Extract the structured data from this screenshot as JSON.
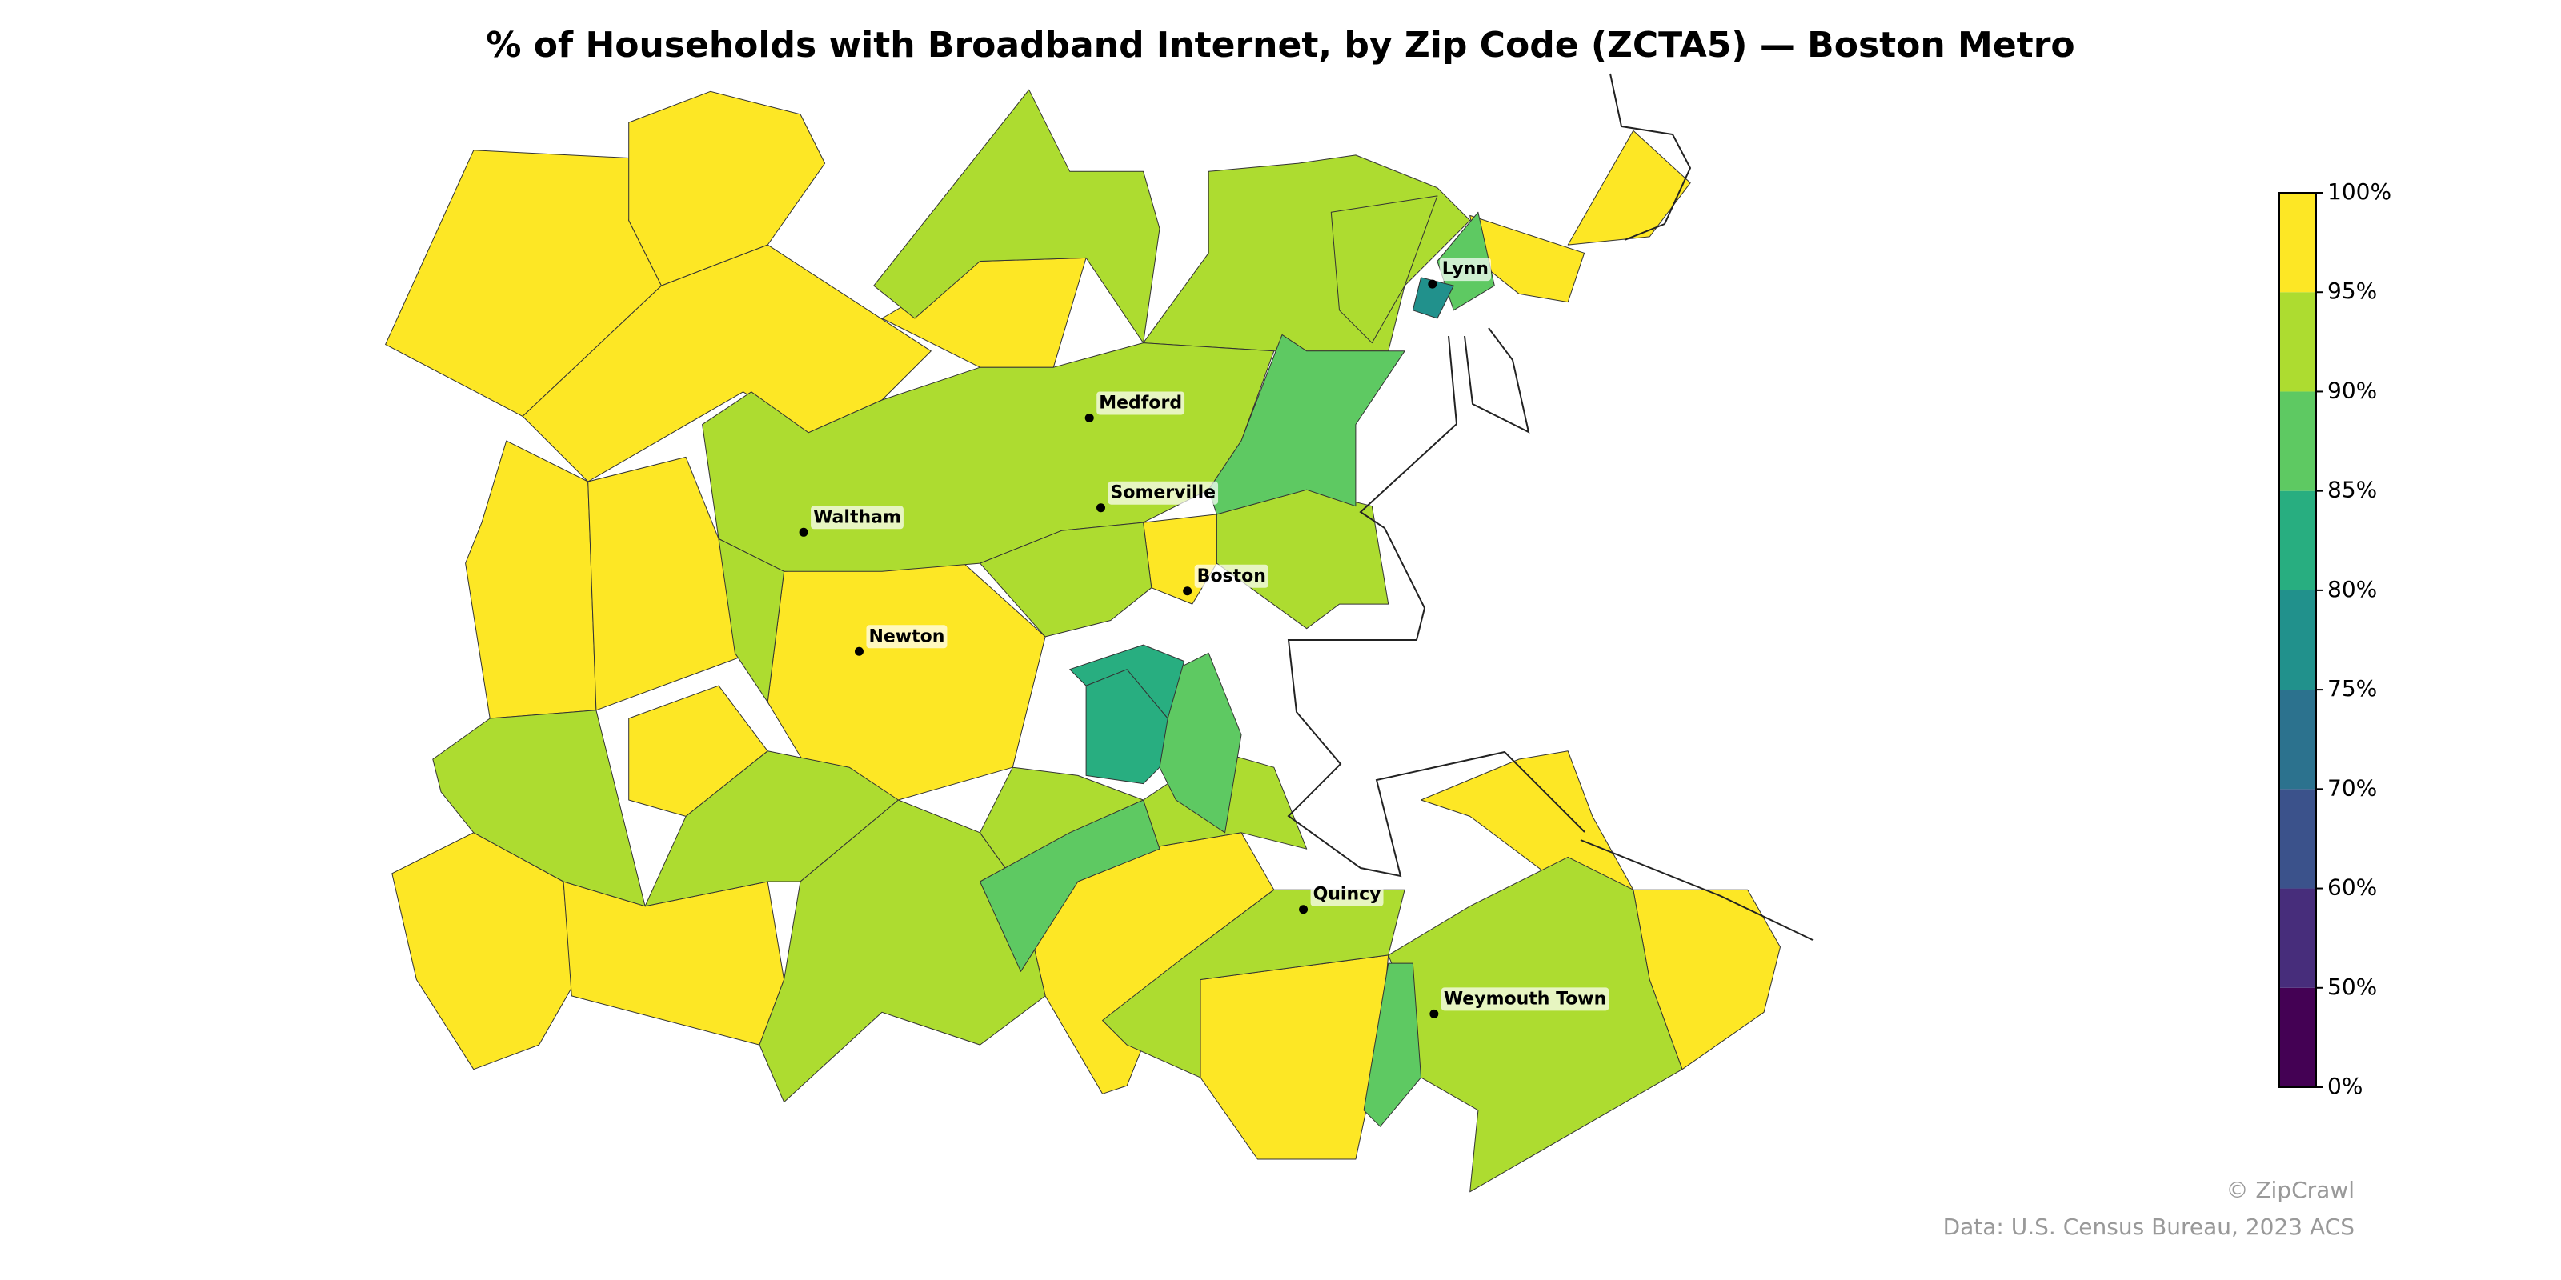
{
  "chart_data": {
    "type": "choropleth",
    "title": "% of Households with Broadband Internet, by Zip Code (ZCTA5) — Boston Metro",
    "values": [
      97,
      97,
      97,
      97,
      97,
      97,
      97,
      97,
      97,
      97,
      97,
      97,
      97,
      97,
      97,
      97,
      97,
      92,
      92,
      92,
      92,
      92,
      92,
      92,
      92,
      92,
      92,
      92,
      92,
      92,
      87,
      87,
      87,
      87,
      87,
      82,
      82,
      77
    ],
    "colorbar": {
      "ticks": [
        {
          "value": 0,
          "label": "0%"
        },
        {
          "value": 50,
          "label": "50%"
        },
        {
          "value": 60,
          "label": "60%"
        },
        {
          "value": 70,
          "label": "70%"
        },
        {
          "value": 75,
          "label": "75%"
        },
        {
          "value": 80,
          "label": "80%"
        },
        {
          "value": 85,
          "label": "85%"
        },
        {
          "value": 90,
          "label": "90%"
        },
        {
          "value": 95,
          "label": "95%"
        },
        {
          "value": 100,
          "label": "100%"
        }
      ],
      "colors": [
        "#440154",
        "#472d7b",
        "#3b528b",
        "#2c728e",
        "#21918c",
        "#28ae80",
        "#5ec962",
        "#addc30",
        "#fde725"
      ]
    },
    "cities": [
      "Lynn",
      "Medford",
      "Somerville",
      "Waltham",
      "Boston",
      "Newton",
      "Quincy",
      "Weymouth Town"
    ]
  },
  "footer": {
    "credit": "© ZipCrawl",
    "source": "Data: U.S. Census Bureau, 2023 ACS"
  }
}
